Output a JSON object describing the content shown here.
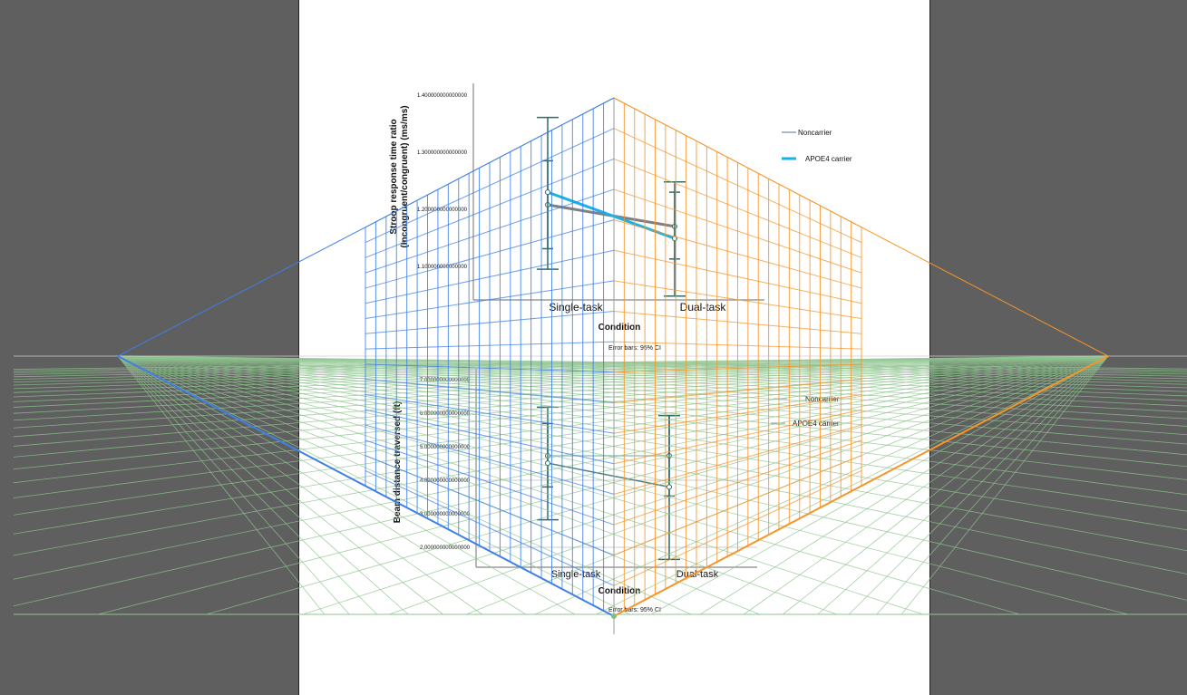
{
  "colors": {
    "background": "#5f5f5f",
    "page": "#ffffff",
    "left_plane_grid": "#3f7fe6",
    "right_plane_grid": "#f5952a",
    "ground_grid": "#8fc48f",
    "error_bar": "#2f6b6b"
  },
  "chart_data": [
    {
      "type": "line",
      "ylabel_line1": "Stroop response time ratio",
      "ylabel_line2": "(Incongruent/congruent) (ms/ms)",
      "xlabel": "Condition",
      "footnote": "Error bars: 95% CI",
      "categories": [
        "Single-task",
        "Dual-task"
      ],
      "yticks": [
        1.1,
        1.2,
        1.3,
        1.4
      ],
      "ytick_labels": [
        "1.100000000000000",
        "1.200000000000000",
        "1.300000000000000",
        "1.400000000000000"
      ],
      "ylim": [
        1.03,
        1.43
      ],
      "legend_position": "top-right",
      "series": [
        {
          "name": "Noncarrier",
          "color": "#808080",
          "legend_color": "#a9b8d6",
          "values": [
            1.208,
            1.17
          ],
          "ci": [
            [
              1.131,
              1.285
            ],
            [
              1.113,
              1.23
            ]
          ]
        },
        {
          "name": "APOE4 carrier",
          "color": "#1ab0ea",
          "legend_color": "#1ab0ea",
          "values": [
            1.23,
            1.149
          ],
          "ci": [
            [
              1.095,
              1.361
            ],
            [
              1.048,
              1.248
            ]
          ]
        }
      ]
    },
    {
      "type": "line",
      "ylabel_line1": "Beam distance traversed (ft)",
      "xlabel": "Condition",
      "footnote": "Error bars: 95% CI",
      "categories": [
        "Single-task",
        "Dual-task"
      ],
      "yticks": [
        2,
        3,
        4,
        5,
        6,
        7
      ],
      "ytick_labels": [
        "2.000000000000000",
        "3.000000000000000",
        "4.000000000000000",
        "5.000000000000000",
        "6.000000000000000",
        "7.000000000000000"
      ],
      "ylim": [
        1.34,
        7.3
      ],
      "legend_position": "top-right",
      "series": [
        {
          "name": "Noncarrier",
          "color": "#9cc6c2",
          "legend_color": "#8fb3d9",
          "values": [
            4.73,
            4.73
          ],
          "ci": [
            [
              3.8,
              5.69
            ],
            [
              3.53,
              5.93
            ]
          ]
        },
        {
          "name": "APOE4 carrier",
          "color": "#4f8080",
          "legend_color": "#8a9a9a",
          "values": [
            4.51,
            3.8
          ],
          "ci": [
            [
              2.82,
              6.18
            ],
            [
              1.64,
              5.93
            ]
          ]
        }
      ]
    }
  ]
}
